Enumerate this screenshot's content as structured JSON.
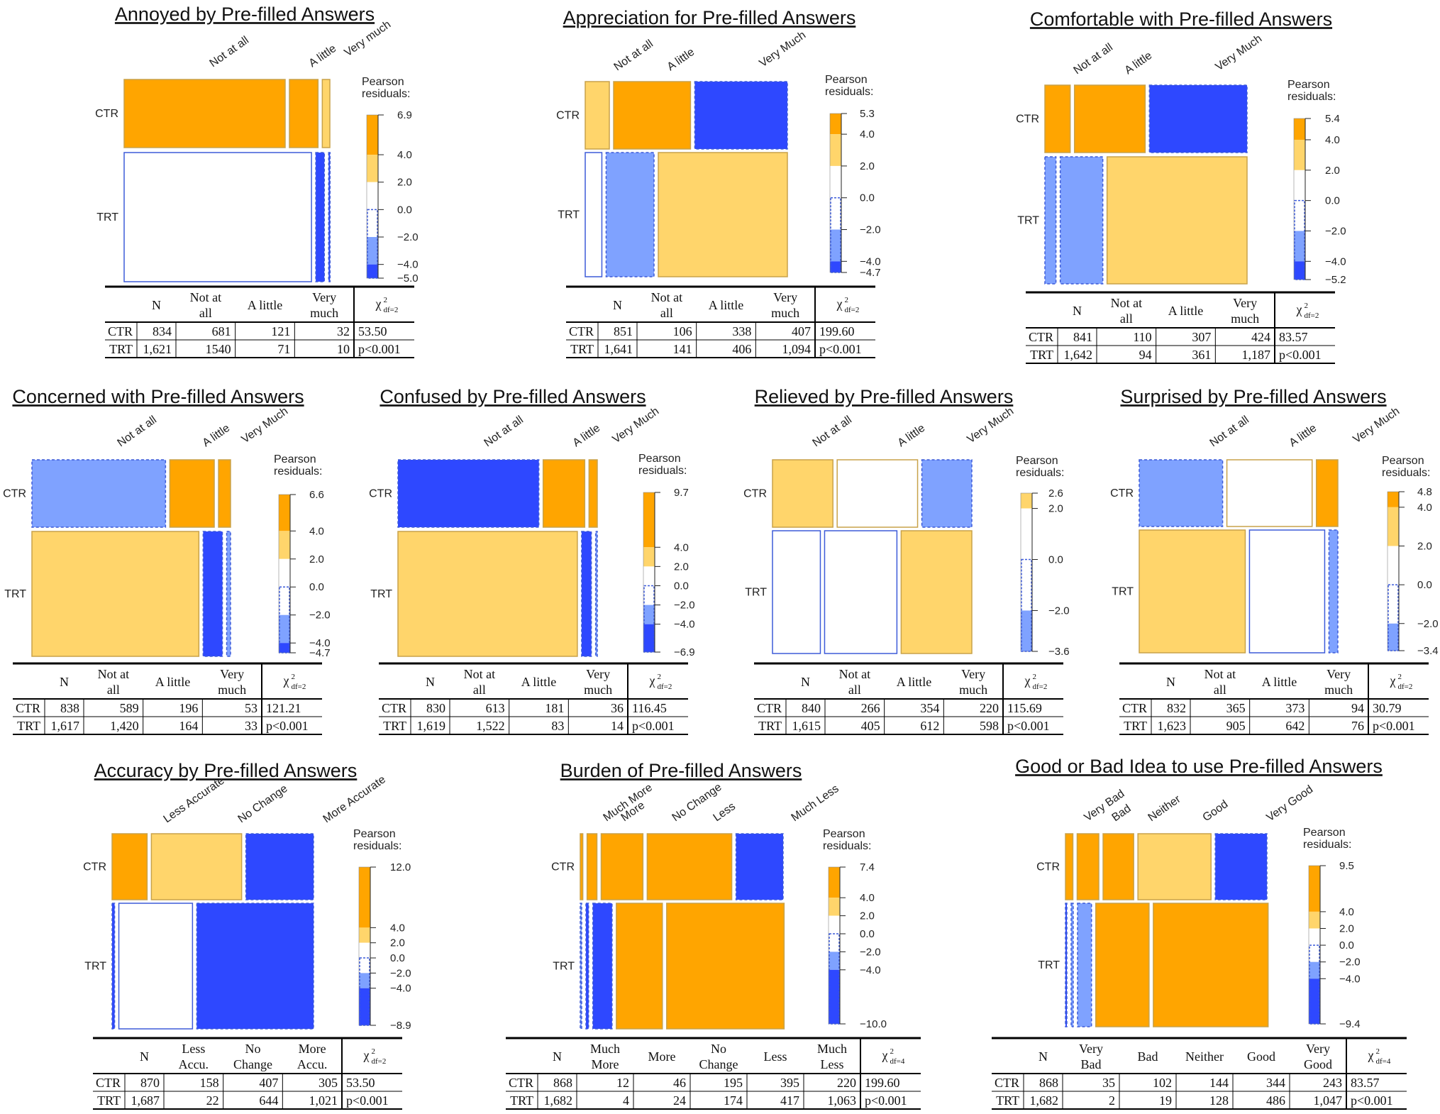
{
  "colors": {
    "strong_pos": "#FFA500",
    "weak_pos": "#FFD56B",
    "neutral": "#FFFFFF",
    "weak_neg": "#7FA2FF",
    "strong_neg": "#2E48FF",
    "pos_border": "#C8A24A",
    "neg_border": "#3D5BD9"
  },
  "legend_title": [
    "Pearson",
    "residuals:"
  ],
  "table_header_chi": "χ",
  "chart_data": [
    {
      "type": "mosaic",
      "title": "Annoyed by Pre-filled Answers",
      "rows": [
        "CTR",
        "TRT"
      ],
      "categories": [
        "Not at all",
        "A little",
        "Very much"
      ],
      "table_categories": [
        [
          "Not at",
          "all"
        ],
        [
          "A little"
        ],
        [
          "Very",
          "much"
        ]
      ],
      "counts": [
        [
          681,
          121,
          32
        ],
        [
          1540,
          71,
          10
        ]
      ],
      "table_counts": [
        [
          "681",
          "121",
          "32"
        ],
        [
          "1540",
          "71",
          "10"
        ]
      ],
      "n": [
        "834",
        "1,621"
      ],
      "residual_levels": [
        [
          2,
          2,
          1
        ],
        [
          0,
          -2,
          -2
        ]
      ],
      "legend_ticks": [
        "6.9",
        "4.0",
        "2.0",
        "0.0",
        "−2.0",
        "−4.0",
        "−5.0"
      ],
      "legend_range": [
        -5.0,
        6.9
      ],
      "chi_df": "df=2",
      "chi_value": "53.50",
      "p_value": "p<0.001"
    },
    {
      "type": "mosaic",
      "title": "Appreciation for Pre-filled Answers",
      "rows": [
        "CTR",
        "TRT"
      ],
      "categories": [
        "Not at all",
        "A little",
        "Very Much"
      ],
      "table_categories": [
        [
          "Not at",
          "all"
        ],
        [
          "A little"
        ],
        [
          "Very",
          "much"
        ]
      ],
      "counts": [
        [
          106,
          338,
          407
        ],
        [
          141,
          406,
          1094
        ]
      ],
      "table_counts": [
        [
          "106",
          "338",
          "407"
        ],
        [
          "141",
          "406",
          "1,094"
        ]
      ],
      "n": [
        "851",
        "1,641"
      ],
      "residual_levels": [
        [
          1,
          2,
          -2
        ],
        [
          0,
          -1,
          1
        ]
      ],
      "legend_ticks": [
        "5.3",
        "4.0",
        "2.0",
        "0.0",
        "−2.0",
        "−4.0",
        "−4.7"
      ],
      "legend_range": [
        -4.7,
        5.3
      ],
      "chi_df": "df=2",
      "chi_value": "199.60",
      "p_value": "p<0.001"
    },
    {
      "type": "mosaic",
      "title": "Comfortable with Pre-filled Answers",
      "rows": [
        "CTR",
        "TRT"
      ],
      "categories": [
        "Not at all",
        "A little",
        "Very Much"
      ],
      "table_categories": [
        [
          "Not at",
          "all"
        ],
        [
          "A little"
        ],
        [
          "Very",
          "much"
        ]
      ],
      "counts": [
        [
          110,
          307,
          424
        ],
        [
          94,
          361,
          1187
        ]
      ],
      "table_counts": [
        [
          "110",
          "307",
          "424"
        ],
        [
          "94",
          "361",
          "1,187"
        ]
      ],
      "n": [
        "841",
        "1,642"
      ],
      "residual_levels": [
        [
          2,
          2,
          -2
        ],
        [
          -1,
          -1,
          1
        ]
      ],
      "legend_ticks": [
        "5.4",
        "4.0",
        "2.0",
        "0.0",
        "−2.0",
        "−4.0",
        "−5.2"
      ],
      "legend_range": [
        -5.2,
        5.4
      ],
      "chi_df": "df=2",
      "chi_value": "83.57",
      "p_value": "p<0.001"
    },
    {
      "type": "mosaic",
      "title": "Concerned with Pre-filled Answers",
      "rows": [
        "CTR",
        "TRT"
      ],
      "categories": [
        "Not at all",
        "A little",
        "Very Much"
      ],
      "table_categories": [
        [
          "Not at",
          "all"
        ],
        [
          "A little"
        ],
        [
          "Very",
          "much"
        ]
      ],
      "counts": [
        [
          589,
          196,
          53
        ],
        [
          1420,
          164,
          33
        ]
      ],
      "table_counts": [
        [
          "589",
          "196",
          "53"
        ],
        [
          "1,420",
          "164",
          "33"
        ]
      ],
      "n": [
        "838",
        "1,617"
      ],
      "residual_levels": [
        [
          -1,
          2,
          2
        ],
        [
          1,
          -2,
          -1
        ]
      ],
      "legend_ticks": [
        "6.6",
        "4.0",
        "2.0",
        "0.0",
        "−2.0",
        "−4.0",
        "−4.7"
      ],
      "legend_range": [
        -4.7,
        6.6
      ],
      "chi_df": "df=2",
      "chi_value": "121.21",
      "p_value": "p<0.001"
    },
    {
      "type": "mosaic",
      "title": "Confused by Pre-filled Answers",
      "rows": [
        "CTR",
        "TRT"
      ],
      "categories": [
        "Not at all",
        "A little",
        "Very Much"
      ],
      "table_categories": [
        [
          "Not at",
          "all"
        ],
        [
          "A little"
        ],
        [
          "Very",
          "much"
        ]
      ],
      "counts": [
        [
          613,
          181,
          36
        ],
        [
          1522,
          83,
          14
        ]
      ],
      "table_counts": [
        [
          "613",
          "181",
          "36"
        ],
        [
          "1,522",
          "83",
          "14"
        ]
      ],
      "n": [
        "830",
        "1,619"
      ],
      "residual_levels": [
        [
          -2,
          2,
          2
        ],
        [
          1,
          -2,
          -1
        ]
      ],
      "legend_ticks": [
        "9.7",
        "4.0",
        "2.0",
        "0.0",
        "−2.0",
        "−4.0",
        "−6.9"
      ],
      "legend_range": [
        -6.9,
        9.7
      ],
      "chi_df": "df=2",
      "chi_value": "116.45",
      "p_value": "p<0.001"
    },
    {
      "type": "mosaic",
      "title": "Relieved by Pre-filled Answers",
      "rows": [
        "CTR",
        "TRT"
      ],
      "categories": [
        "Not at all",
        "A little",
        "Very Much"
      ],
      "table_categories": [
        [
          "Not at",
          "all"
        ],
        [
          "A little"
        ],
        [
          "Very",
          "much"
        ]
      ],
      "counts": [
        [
          266,
          354,
          220
        ],
        [
          405,
          612,
          598
        ]
      ],
      "table_counts": [
        [
          "266",
          "354",
          "220"
        ],
        [
          "405",
          "612",
          "598"
        ]
      ],
      "n": [
        "840",
        "1,615"
      ],
      "residual_levels": [
        [
          1,
          0,
          -1
        ],
        [
          0,
          0,
          1
        ]
      ],
      "legend_ticks": [
        "2.6",
        "2.0",
        "0.0",
        "−2.0",
        "−3.6"
      ],
      "legend_range": [
        -3.6,
        2.6
      ],
      "chi_df": "df=2",
      "chi_value": "115.69",
      "p_value": "p<0.001"
    },
    {
      "type": "mosaic",
      "title": "Surprised by Pre-filled Answers",
      "rows": [
        "CTR",
        "TRT"
      ],
      "categories": [
        "Not at all",
        "A little",
        "Very Much"
      ],
      "table_categories": [
        [
          "Not at",
          "all"
        ],
        [
          "A little"
        ],
        [
          "Very",
          "much"
        ]
      ],
      "counts": [
        [
          365,
          373,
          94
        ],
        [
          905,
          642,
          76
        ]
      ],
      "table_counts": [
        [
          "365",
          "373",
          "94"
        ],
        [
          "905",
          "642",
          "76"
        ]
      ],
      "n": [
        "832",
        "1,623"
      ],
      "residual_levels": [
        [
          -1,
          0,
          2
        ],
        [
          1,
          0,
          -1
        ]
      ],
      "legend_ticks": [
        "4.8",
        "4.0",
        "2.0",
        "0.0",
        "−2.0",
        "−3.4"
      ],
      "legend_range": [
        -3.4,
        4.8
      ],
      "chi_df": "df=2",
      "chi_value": "30.79",
      "p_value": "p<0.001"
    },
    {
      "type": "mosaic",
      "title": "Accuracy by Pre-filled Answers",
      "rows": [
        "CTR",
        "TRT"
      ],
      "categories": [
        "Less Accurate",
        "No Change",
        "More Accurate"
      ],
      "table_categories": [
        [
          "Less",
          "Accu."
        ],
        [
          "No",
          "Change"
        ],
        [
          "More",
          "Accu."
        ]
      ],
      "counts": [
        [
          158,
          407,
          305
        ],
        [
          22,
          644,
          1021
        ]
      ],
      "table_counts": [
        [
          "158",
          "407",
          "305"
        ],
        [
          "22",
          "644",
          "1,021"
        ]
      ],
      "n": [
        "870",
        "1,687"
      ],
      "residual_levels": [
        [
          2,
          1,
          -2
        ],
        [
          -2,
          0,
          -2
        ]
      ],
      "legend_ticks": [
        "12.0",
        "4.0",
        "2.0",
        "0.0",
        "−2.0",
        "−4.0",
        "−8.9"
      ],
      "legend_range": [
        -8.9,
        12.0
      ],
      "chi_df": "df=2",
      "chi_value": "53.50",
      "p_value": "p<0.001"
    },
    {
      "type": "mosaic",
      "title": "Burden of Pre-filled Answers",
      "rows": [
        "CTR",
        "TRT"
      ],
      "categories": [
        "Much More",
        "More",
        "No Change",
        "Less",
        "Much Less"
      ],
      "table_categories": [
        [
          "Much",
          "More"
        ],
        [
          "More"
        ],
        [
          "No",
          "Change"
        ],
        [
          "Less"
        ],
        [
          "Much",
          "Less"
        ]
      ],
      "counts": [
        [
          12,
          46,
          195,
          395,
          220
        ],
        [
          4,
          24,
          174,
          417,
          1063
        ]
      ],
      "table_counts": [
        [
          "12",
          "46",
          "195",
          "395",
          "220"
        ],
        [
          "4",
          "24",
          "174",
          "417",
          "1,063"
        ]
      ],
      "n": [
        "868",
        "1,682"
      ],
      "residual_levels": [
        [
          2,
          2,
          2,
          2,
          -2
        ],
        [
          -1,
          -2,
          -2,
          2,
          2
        ]
      ],
      "legend_ticks": [
        "7.4",
        "4.0",
        "2.0",
        "0.0",
        "−2.0",
        "−4.0",
        "−10.0"
      ],
      "legend_range": [
        -10.0,
        7.4
      ],
      "chi_df": "df=4",
      "chi_value": "199.60",
      "p_value": "p<0.001"
    },
    {
      "type": "mosaic",
      "title": "Good or Bad Idea to use Pre-filled Answers",
      "rows": [
        "CTR",
        "TRT"
      ],
      "categories": [
        "Very Bad",
        "Bad",
        "Neither",
        "Good",
        "Very Good"
      ],
      "table_categories": [
        [
          "Very",
          "Bad"
        ],
        [
          "Bad"
        ],
        [
          "Neither"
        ],
        [
          "Good"
        ],
        [
          "Very",
          "Good"
        ]
      ],
      "counts": [
        [
          35,
          102,
          144,
          344,
          243
        ],
        [
          2,
          19,
          128,
          486,
          1047
        ]
      ],
      "table_counts": [
        [
          "35",
          "102",
          "144",
          "344",
          "243"
        ],
        [
          "2",
          "19",
          "128",
          "486",
          "1,047"
        ]
      ],
      "n": [
        "868",
        "1,682"
      ],
      "residual_levels": [
        [
          2,
          2,
          2,
          1,
          -2
        ],
        [
          -2,
          -1,
          -1,
          2,
          2
        ]
      ],
      "legend_ticks": [
        "9.5",
        "4.0",
        "2.0",
        "0.0",
        "−2.0",
        "−4.0",
        "−9.4"
      ],
      "legend_range": [
        -9.4,
        9.5
      ],
      "chi_df": "df=4",
      "chi_value": "83.57",
      "p_value": "p<0.001"
    }
  ]
}
